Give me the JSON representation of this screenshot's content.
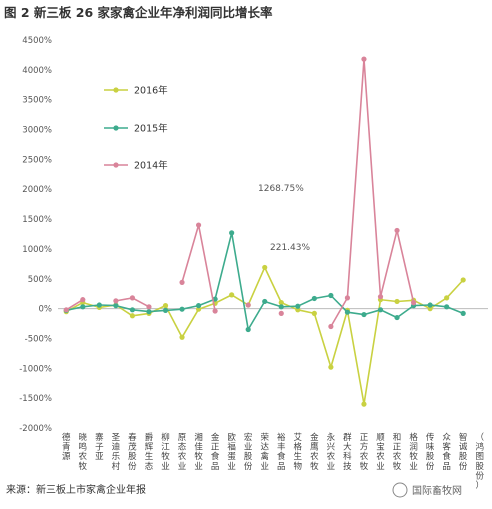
{
  "chart_data": {
    "type": "line",
    "title": "图 2 新三板 26 家家禽企业年净利润同比增长率",
    "categories": [
      "德青源",
      "晓鸣农牧",
      "寨子亚",
      "圣迪乐村",
      "春茂股份",
      "爵辉生态",
      "柳江牧业",
      "原态农业",
      "湘佳牧业",
      "金正食品",
      "欧福蛋业",
      "宏业股份",
      "荣达禽业",
      "裕丰食品",
      "艾格生物",
      "金鹰农牧",
      "永兴农业",
      "群大科技",
      "正方农牧",
      "顺宝农业",
      "和正农牧",
      "格润牧业",
      "传味股份",
      "众客食品",
      "智诚股份",
      "（鸿图股份）"
    ],
    "ylim": [
      -2000,
      4500
    ],
    "yticks": [
      -2000,
      -1500,
      -1000,
      -500,
      0,
      500,
      1000,
      1500,
      2000,
      2500,
      3000,
      3500,
      4000,
      4500
    ],
    "ytick_labels": [
      "-2000%",
      "-1500%",
      "-1000%",
      "-500%",
      "0%",
      "500%",
      "1000%",
      "1500%",
      "2000%",
      "2500%",
      "3000%",
      "3500%",
      "4000%",
      "4500%"
    ],
    "series": [
      {
        "name": "2016年",
        "color": "#c9d141",
        "values": [
          -50,
          100,
          20,
          60,
          -120,
          -80,
          50,
          -480,
          -10,
          90,
          230,
          60,
          690,
          100,
          -20,
          -80,
          -980,
          -30,
          -1600,
          150,
          120,
          140,
          0,
          180,
          480,
          null
        ]
      },
      {
        "name": "2015年",
        "color": "#3dab8d",
        "values": [
          -30,
          30,
          60,
          50,
          -20,
          -50,
          -30,
          -10,
          50,
          160,
          1268.75,
          -350,
          120,
          30,
          40,
          170,
          220,
          -60,
          -100,
          -20,
          -150,
          50,
          60,
          30,
          -80,
          null
        ]
      },
      {
        "name": "2014年",
        "color": "#d9849a",
        "values": [
          -20,
          150,
          null,
          130,
          180,
          30,
          null,
          440,
          1400,
          -40,
          null,
          60,
          null,
          -80,
          null,
          null,
          -300,
          180,
          4180,
          200,
          1310,
          100,
          null,
          null,
          null,
          null
        ]
      }
    ],
    "annotations": [
      "1268.75%",
      "221.43%"
    ],
    "legend_position": "left-inside",
    "grid": false
  },
  "source_note": "来源：新三板上市家禽企业年报",
  "watermark": "国际畜牧网"
}
